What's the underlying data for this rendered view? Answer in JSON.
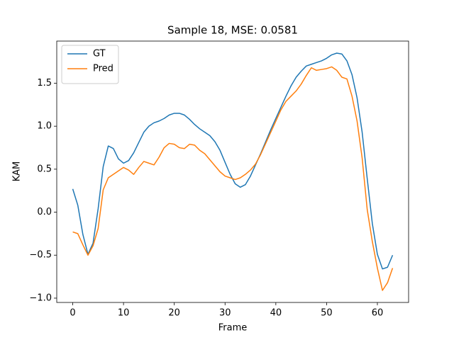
{
  "chart_data": {
    "type": "line",
    "title": "Sample 18, MSE: 0.0581",
    "xlabel": "Frame",
    "ylabel": "KAM",
    "x": [
      0,
      1,
      2,
      3,
      4,
      5,
      6,
      7,
      8,
      9,
      10,
      11,
      12,
      13,
      14,
      15,
      16,
      17,
      18,
      19,
      20,
      21,
      22,
      23,
      24,
      25,
      26,
      27,
      28,
      29,
      30,
      31,
      32,
      33,
      34,
      35,
      36,
      37,
      38,
      39,
      40,
      41,
      42,
      43,
      44,
      45,
      46,
      47,
      48,
      49,
      50,
      51,
      52,
      53,
      54,
      55,
      56,
      57,
      58,
      59,
      60,
      61,
      62,
      63
    ],
    "series": [
      {
        "name": "GT",
        "color": "#1f77b4",
        "values": [
          0.27,
          0.08,
          -0.26,
          -0.49,
          -0.36,
          0.04,
          0.53,
          0.77,
          0.74,
          0.62,
          0.57,
          0.6,
          0.69,
          0.81,
          0.93,
          1.0,
          1.04,
          1.06,
          1.09,
          1.13,
          1.15,
          1.15,
          1.13,
          1.08,
          1.02,
          0.97,
          0.93,
          0.89,
          0.82,
          0.72,
          0.58,
          0.44,
          0.33,
          0.29,
          0.32,
          0.42,
          0.55,
          0.68,
          0.82,
          0.96,
          1.09,
          1.22,
          1.35,
          1.47,
          1.57,
          1.64,
          1.7,
          1.72,
          1.74,
          1.76,
          1.79,
          1.83,
          1.85,
          1.84,
          1.76,
          1.6,
          1.33,
          0.93,
          0.39,
          -0.13,
          -0.49,
          -0.66,
          -0.64,
          -0.5
        ]
      },
      {
        "name": "Pred",
        "color": "#ff7f0e",
        "values": [
          -0.23,
          -0.25,
          -0.38,
          -0.5,
          -0.39,
          -0.19,
          0.26,
          0.4,
          0.44,
          0.48,
          0.52,
          0.49,
          0.44,
          0.52,
          0.59,
          0.57,
          0.55,
          0.64,
          0.75,
          0.8,
          0.79,
          0.75,
          0.74,
          0.79,
          0.78,
          0.72,
          0.68,
          0.61,
          0.54,
          0.47,
          0.42,
          0.4,
          0.38,
          0.4,
          0.44,
          0.49,
          0.56,
          0.67,
          0.8,
          0.93,
          1.06,
          1.19,
          1.29,
          1.35,
          1.41,
          1.49,
          1.59,
          1.68,
          1.65,
          1.66,
          1.67,
          1.69,
          1.65,
          1.57,
          1.55,
          1.35,
          1.06,
          0.63,
          0.03,
          -0.34,
          -0.65,
          -0.91,
          -0.82,
          -0.65
        ]
      }
    ],
    "xlim": [
      -3.15,
      66.15
    ],
    "ylim": [
      -1.05,
      1.99
    ],
    "xticks": [
      0,
      10,
      20,
      30,
      40,
      50,
      60
    ],
    "yticks": [
      {
        "value": -1.0,
        "label": "−1.0"
      },
      {
        "value": -0.5,
        "label": "−0.5"
      },
      {
        "value": 0.0,
        "label": "0.0"
      },
      {
        "value": 0.5,
        "label": "0.5"
      },
      {
        "value": 1.0,
        "label": "1.0"
      },
      {
        "value": 1.5,
        "label": "1.5"
      }
    ],
    "legend": "upper left",
    "grid": false
  }
}
